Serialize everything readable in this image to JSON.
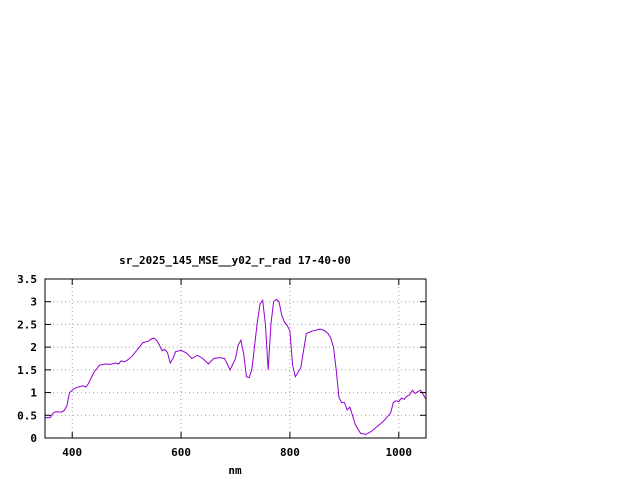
{
  "chart_data": {
    "type": "line",
    "title": "sr_2025_145_MSE__y02_r_rad 17-40-00",
    "xlabel": "nm",
    "ylabel": "",
    "xlim": [
      350,
      1050
    ],
    "ylim": [
      0,
      3.5
    ],
    "x_ticks": [
      400,
      600,
      800,
      1000
    ],
    "x_tick_labels": [
      "400",
      "600",
      "800",
      "1000"
    ],
    "y_ticks": [
      0,
      0.5,
      1,
      1.5,
      2,
      2.5,
      3,
      3.5
    ],
    "y_tick_labels": [
      "0",
      "0.5",
      "1",
      "1.5",
      "2",
      "2.5",
      "3",
      "3.5"
    ],
    "grid": true,
    "legend": "none",
    "line_color": "#9400d3",
    "series": [
      {
        "x": [
          350,
          360,
          365,
          370,
          380,
          385,
          390,
          395,
          400,
          403,
          410,
          420,
          425,
          430,
          440,
          450,
          460,
          470,
          480,
          485,
          490,
          495,
          500,
          505,
          510,
          520,
          530,
          540,
          545,
          550,
          555,
          560,
          565,
          570,
          575,
          580,
          585,
          590,
          600,
          610,
          620,
          630,
          640,
          650,
          660,
          670,
          680,
          690,
          700,
          705,
          710,
          715,
          720,
          725,
          730,
          740,
          745,
          750,
          755,
          760,
          765,
          770,
          775,
          780,
          785,
          790,
          795,
          800,
          805,
          810,
          820,
          830,
          840,
          850,
          855,
          860,
          865,
          870,
          875,
          880,
          885,
          890,
          895,
          900,
          905,
          910,
          915,
          920,
          930,
          940,
          950,
          960,
          970,
          980,
          985,
          990,
          995,
          1000,
          1005,
          1010,
          1015,
          1020,
          1025,
          1030,
          1035,
          1040,
          1045,
          1050
        ],
        "y": [
          0.45,
          0.45,
          0.55,
          0.58,
          0.57,
          0.6,
          0.7,
          1.0,
          1.05,
          1.08,
          1.12,
          1.15,
          1.12,
          1.2,
          1.45,
          1.6,
          1.63,
          1.62,
          1.65,
          1.63,
          1.7,
          1.68,
          1.7,
          1.75,
          1.8,
          1.95,
          2.1,
          2.13,
          2.18,
          2.2,
          2.15,
          2.05,
          1.92,
          1.95,
          1.88,
          1.65,
          1.75,
          1.9,
          1.93,
          1.87,
          1.75,
          1.82,
          1.75,
          1.63,
          1.75,
          1.77,
          1.75,
          1.5,
          1.75,
          2.05,
          2.15,
          1.85,
          1.35,
          1.33,
          1.5,
          2.55,
          2.95,
          3.03,
          2.5,
          1.5,
          2.5,
          3.0,
          3.05,
          3.0,
          2.7,
          2.55,
          2.48,
          2.35,
          1.6,
          1.35,
          1.55,
          2.3,
          2.35,
          2.38,
          2.4,
          2.38,
          2.35,
          2.3,
          2.2,
          2.0,
          1.5,
          0.9,
          0.78,
          0.78,
          0.62,
          0.68,
          0.5,
          0.3,
          0.1,
          0.08,
          0.15,
          0.25,
          0.35,
          0.48,
          0.55,
          0.78,
          0.82,
          0.8,
          0.88,
          0.85,
          0.92,
          0.95,
          1.05,
          0.98,
          1.02,
          1.05,
          0.95,
          0.85
        ]
      }
    ]
  }
}
